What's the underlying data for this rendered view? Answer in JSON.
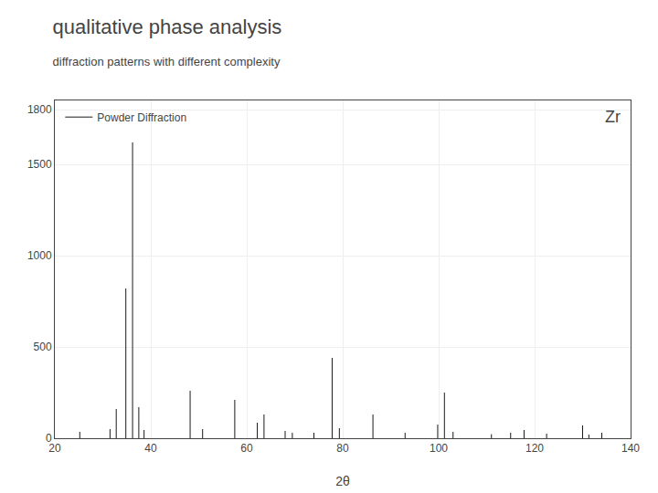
{
  "chart_data": {
    "type": "stem",
    "title": "qualitative phase analysis",
    "subtitle": "diffraction patterns with different complexity",
    "annotations": [
      "Zr"
    ],
    "xlabel": "2θ",
    "x": [
      25.2,
      31.5,
      32.8,
      34.8,
      36.2,
      37.5,
      38.6,
      48.2,
      50.8,
      57.5,
      62.2,
      63.6,
      68.0,
      69.5,
      74.0,
      77.8,
      79.3,
      86.3,
      93.0,
      99.8,
      101.2,
      103.0,
      111.0,
      115.0,
      117.8,
      122.5,
      130.0,
      131.3,
      134.0
    ],
    "series": [
      {
        "name": "Powder Diffraction",
        "color": "#1a1a1a",
        "values": [
          35,
          50,
          160,
          820,
          1620,
          170,
          45,
          260,
          50,
          210,
          85,
          130,
          40,
          30,
          30,
          440,
          55,
          130,
          30,
          75,
          250,
          35,
          22,
          30,
          45,
          25,
          70,
          20,
          30
        ]
      }
    ],
    "xlim": [
      20,
      140
    ],
    "ylim": [
      0,
      1850
    ],
    "xticks": [
      20,
      40,
      60,
      80,
      100,
      120,
      140
    ],
    "yticks": [
      0,
      500,
      1000,
      1500,
      1800
    ],
    "grid": true,
    "legend": "upper left"
  }
}
